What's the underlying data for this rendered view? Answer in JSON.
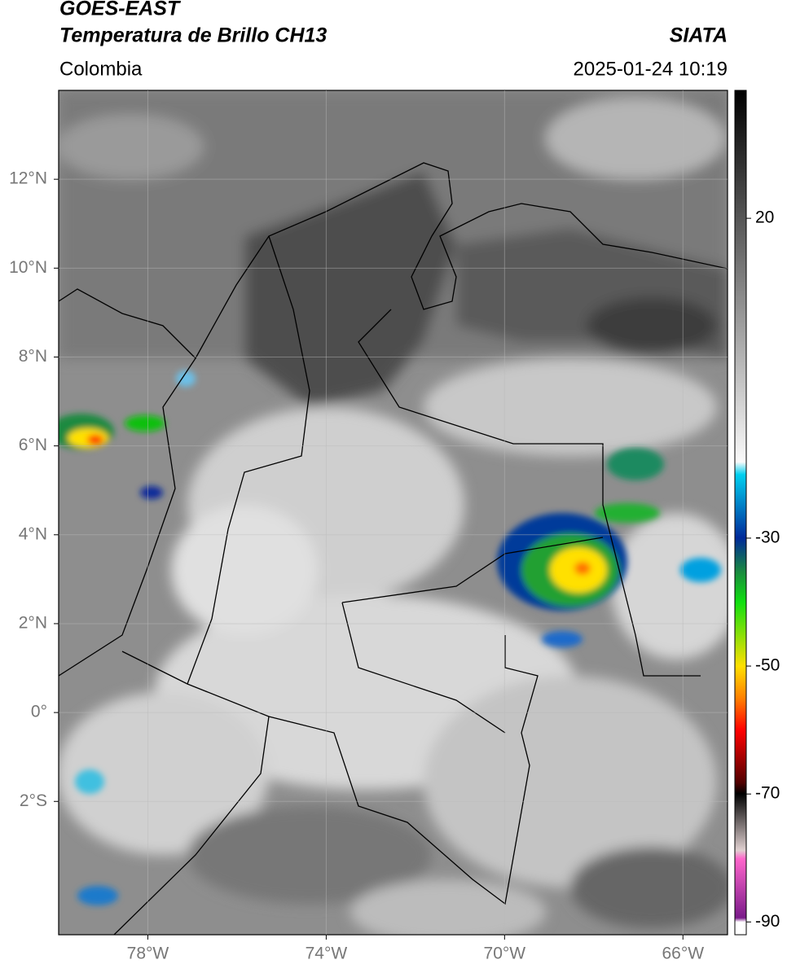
{
  "header": {
    "line1": "GOES-EAST",
    "line2": "Temperatura de Brillo CH13",
    "source": "SIATA",
    "region": "Colombia",
    "datetime": "2025-01-24 10:19"
  },
  "map": {
    "xlim": [
      -80,
      -65
    ],
    "ylim": [
      -5,
      14
    ],
    "xticks": [
      {
        "value": -78,
        "label": "78°W"
      },
      {
        "value": -74,
        "label": "74°W"
      },
      {
        "value": -70,
        "label": "70°W"
      },
      {
        "value": -66,
        "label": "66°W"
      }
    ],
    "yticks": [
      {
        "value": 12,
        "label": "12°N"
      },
      {
        "value": 10,
        "label": "10°N"
      },
      {
        "value": 8,
        "label": "8°N"
      },
      {
        "value": 6,
        "label": "6°N"
      },
      {
        "value": 4,
        "label": "4°N"
      },
      {
        "value": 2,
        "label": "2°N"
      },
      {
        "value": 0,
        "label": "0°"
      },
      {
        "value": -2,
        "label": "2°S"
      }
    ],
    "grid": true
  },
  "colorbar": {
    "lim": [
      -92,
      40
    ],
    "ticks": [
      20,
      -30,
      -50,
      -70,
      -90
    ]
  }
}
